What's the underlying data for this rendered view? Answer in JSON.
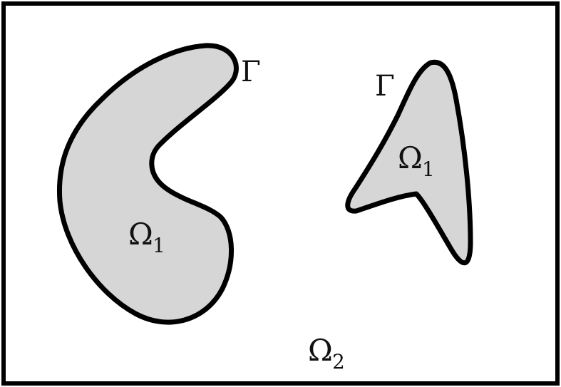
{
  "diagram": {
    "labels": {
      "omega1_left": {
        "base": "Ω",
        "sub": "1"
      },
      "omega1_right": {
        "base": "Ω",
        "sub": "1"
      },
      "omega2": {
        "base": "Ω",
        "sub": "2"
      },
      "gamma_left": "Γ",
      "gamma_right": "Γ"
    },
    "colors": {
      "region_fill": "#d6d6d6",
      "stroke": "#000000",
      "background": "#ffffff"
    }
  }
}
